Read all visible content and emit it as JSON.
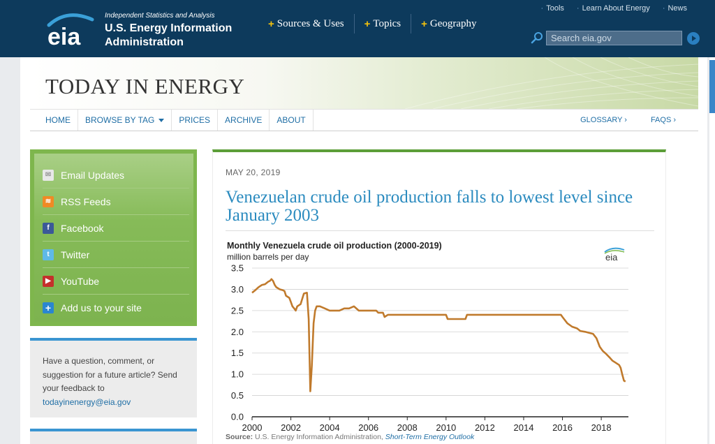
{
  "header": {
    "tagline": "Independent Statistics and Analysis",
    "org_name": "U.S. Energy Information Administration",
    "logo_text": "eia",
    "nav": [
      {
        "label": "Sources & Uses"
      },
      {
        "label": "Topics"
      },
      {
        "label": "Geography"
      }
    ],
    "utility_links": [
      {
        "label": "Tools"
      },
      {
        "label": "Learn About Energy"
      },
      {
        "label": "News"
      }
    ],
    "search_placeholder": "Search eia.gov",
    "colors": {
      "header_bg": "#0d3a5c",
      "nav_plus": "#f4c20d"
    }
  },
  "banner": {
    "title": "TODAY IN ENERGY"
  },
  "subnav": {
    "left": [
      {
        "label": "HOME"
      },
      {
        "label": "BROWSE BY TAG"
      },
      {
        "label": "PRICES"
      },
      {
        "label": "ARCHIVE"
      },
      {
        "label": "ABOUT"
      }
    ],
    "right": [
      {
        "label": "GLOSSARY ›"
      },
      {
        "label": "FAQS ›"
      }
    ]
  },
  "sidebar": {
    "social": [
      {
        "label": "Email Updates",
        "icon": "email-icon"
      },
      {
        "label": "RSS Feeds",
        "icon": "rss-icon"
      },
      {
        "label": "Facebook",
        "icon": "facebook-icon"
      },
      {
        "label": "Twitter",
        "icon": "twitter-icon"
      },
      {
        "label": "YouTube",
        "icon": "youtube-icon"
      },
      {
        "label": "Add us to your site",
        "icon": "plus-icon"
      }
    ],
    "feedback": {
      "text": "Have a question, comment, or suggestion for a future article? Send your feedback to",
      "email": "todayinenergy@eia.gov"
    }
  },
  "article": {
    "date": "MAY 20, 2019",
    "title": "Venezuelan crude oil production falls to lowest level since January 2003",
    "source_label": "Source:",
    "source_text": "U.S. Energy Information Administration,",
    "source_link": "Short-Term Energy Outlook"
  },
  "chart_data": {
    "type": "line",
    "title": "Monthly Venezuela crude oil production (2000-2019)",
    "ylabel": "million barrels per day",
    "xlabel": "",
    "xlim": [
      2000,
      2019.4
    ],
    "ylim": [
      0,
      3.5
    ],
    "x_ticks": [
      2000,
      2002,
      2004,
      2006,
      2008,
      2010,
      2012,
      2014,
      2016,
      2018
    ],
    "y_ticks": [
      0.0,
      0.5,
      1.0,
      1.5,
      2.0,
      2.5,
      3.0,
      3.5
    ],
    "y_tick_labels": [
      "0.0",
      "0.5",
      "1.0",
      "1.5",
      "2.0",
      "2.5",
      "3.0",
      "3.5"
    ],
    "grid": "horizontal",
    "line_color": "#c07a2c",
    "series": [
      {
        "points": [
          [
            2000.0,
            2.92
          ],
          [
            2000.17,
            2.98
          ],
          [
            2000.33,
            3.05
          ],
          [
            2000.5,
            3.1
          ],
          [
            2000.67,
            3.12
          ],
          [
            2000.83,
            3.18
          ],
          [
            2000.92,
            3.2
          ],
          [
            2001.0,
            3.24
          ],
          [
            2001.08,
            3.2
          ],
          [
            2001.17,
            3.1
          ],
          [
            2001.25,
            3.05
          ],
          [
            2001.42,
            3.0
          ],
          [
            2001.58,
            2.98
          ],
          [
            2001.67,
            2.96
          ],
          [
            2001.75,
            2.85
          ],
          [
            2001.92,
            2.8
          ],
          [
            2002.0,
            2.7
          ],
          [
            2002.08,
            2.6
          ],
          [
            2002.17,
            2.55
          ],
          [
            2002.25,
            2.5
          ],
          [
            2002.33,
            2.6
          ],
          [
            2002.5,
            2.65
          ],
          [
            2002.67,
            2.9
          ],
          [
            2002.83,
            2.92
          ],
          [
            2002.92,
            2.3
          ],
          [
            2003.0,
            0.6
          ],
          [
            2003.08,
            1.2
          ],
          [
            2003.17,
            2.2
          ],
          [
            2003.25,
            2.5
          ],
          [
            2003.33,
            2.6
          ],
          [
            2003.5,
            2.6
          ],
          [
            2003.75,
            2.55
          ],
          [
            2004.0,
            2.5
          ],
          [
            2004.5,
            2.5
          ],
          [
            2004.75,
            2.55
          ],
          [
            2005.0,
            2.55
          ],
          [
            2005.25,
            2.6
          ],
          [
            2005.5,
            2.5
          ],
          [
            2006.0,
            2.5
          ],
          [
            2006.4,
            2.5
          ],
          [
            2006.5,
            2.45
          ],
          [
            2006.75,
            2.45
          ],
          [
            2006.83,
            2.35
          ],
          [
            2007.0,
            2.4
          ],
          [
            2008.0,
            2.4
          ],
          [
            2009.0,
            2.4
          ],
          [
            2010.0,
            2.4
          ],
          [
            2010.08,
            2.3
          ],
          [
            2011.0,
            2.3
          ],
          [
            2011.08,
            2.4
          ],
          [
            2012.0,
            2.4
          ],
          [
            2013.0,
            2.4
          ],
          [
            2014.0,
            2.4
          ],
          [
            2015.0,
            2.4
          ],
          [
            2015.92,
            2.4
          ],
          [
            2016.0,
            2.35
          ],
          [
            2016.25,
            2.2
          ],
          [
            2016.5,
            2.12
          ],
          [
            2016.75,
            2.08
          ],
          [
            2016.92,
            2.02
          ],
          [
            2017.17,
            2.0
          ],
          [
            2017.42,
            1.97
          ],
          [
            2017.58,
            1.95
          ],
          [
            2017.75,
            1.85
          ],
          [
            2017.92,
            1.65
          ],
          [
            2018.08,
            1.55
          ],
          [
            2018.25,
            1.48
          ],
          [
            2018.42,
            1.4
          ],
          [
            2018.58,
            1.32
          ],
          [
            2018.75,
            1.27
          ],
          [
            2018.92,
            1.22
          ],
          [
            2019.0,
            1.15
          ],
          [
            2019.08,
            1.0
          ],
          [
            2019.17,
            0.85
          ],
          [
            2019.25,
            0.83
          ]
        ]
      }
    ]
  }
}
